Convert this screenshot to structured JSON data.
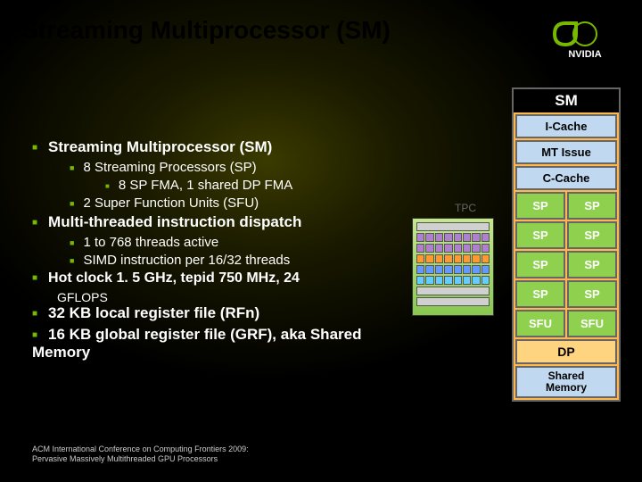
{
  "title": "Streaming Multiprocessor (SM)",
  "logo": {
    "brand_color": "#76b900",
    "text": "NVIDIA"
  },
  "bullets": [
    {
      "level": 1,
      "text": "Streaming Multiprocessor (SM)"
    },
    {
      "level": 2,
      "text": "8 Streaming Processors (SP)"
    },
    {
      "level": 3,
      "text": "8 SP FMA, 1 shared DP FMA"
    },
    {
      "level": 2,
      "text": "2 Super Function Units (SFU)"
    },
    {
      "level": 1,
      "text": "Multi-threaded instruction dispatch"
    },
    {
      "level": 2,
      "text": "1 to 768 threads active"
    },
    {
      "level": 2,
      "text": "SIMD instruction per 16/32 threads"
    },
    {
      "level": 1,
      "text": "Hot clock 1. 5 GHz, tepid 750 MHz, 24"
    },
    {
      "level": 0,
      "text": "GFLOPS"
    },
    {
      "level": 1,
      "text": "32 KB local register file (RFn)"
    },
    {
      "level": 1,
      "text": "16 KB global register file (GRF), aka Shared Memory"
    }
  ],
  "tpc": {
    "label": "TPC",
    "bg_gradient": [
      "#c5e88a",
      "#88c850"
    ],
    "strips": [
      {
        "cells": 1,
        "color": "#d0d0d0"
      },
      {
        "cells": 8,
        "color": "#b080d0"
      },
      {
        "cells": 8,
        "color": "#b080d0"
      },
      {
        "cells": 8,
        "color": "#ff9933"
      },
      {
        "cells": 8,
        "color": "#6699ff"
      },
      {
        "cells": 8,
        "color": "#66ccff"
      },
      {
        "cells": 1,
        "color": "#d0d0d0"
      },
      {
        "cells": 1,
        "color": "#d0d0d0"
      }
    ]
  },
  "sm_diagram": {
    "header": "SM",
    "blocks": [
      {
        "type": "row",
        "label": "I-Cache",
        "class": "cache"
      },
      {
        "type": "row",
        "label": "MT Issue",
        "class": "cache"
      },
      {
        "type": "row",
        "label": "C-Cache",
        "class": "cache"
      },
      {
        "type": "pair",
        "left": "SP",
        "right": "SP",
        "class": "sp"
      },
      {
        "type": "pair",
        "left": "SP",
        "right": "SP",
        "class": "sp"
      },
      {
        "type": "pair",
        "left": "SP",
        "right": "SP",
        "class": "sp"
      },
      {
        "type": "pair",
        "left": "SP",
        "right": "SP",
        "class": "sp"
      },
      {
        "type": "pair",
        "left": "SFU",
        "right": "SFU",
        "class": "sfu"
      },
      {
        "type": "dp",
        "label": "DP"
      },
      {
        "type": "shmem",
        "label1": "Shared",
        "label2": "Memory"
      }
    ],
    "colors": {
      "frame": "#ffb84d",
      "cache_bg": "#c0d8f0",
      "sp_bg": "#8fd14f",
      "border": "#666666"
    }
  },
  "footer": {
    "line1": "ACM International Conference on Computing Frontiers 2009:",
    "line2": "Pervasive Massively Multithreaded GPU Processors"
  }
}
